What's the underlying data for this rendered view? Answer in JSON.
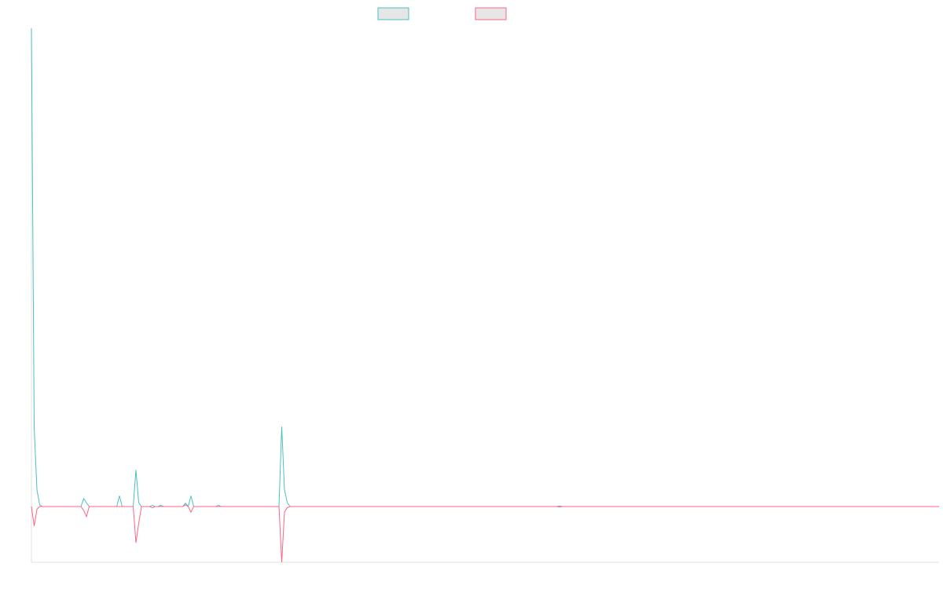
{
  "chart_data": {
    "type": "line",
    "title": "",
    "xlabel": "",
    "ylabel": "",
    "grid": false,
    "legend": "top-center",
    "ylim": [
      -1,
      8.5
    ],
    "xlim": [
      0,
      330
    ],
    "series": [
      {
        "color": "#4bc0c0",
        "fill": "#e6e6e6",
        "points": [
          [
            0,
            8.5
          ],
          [
            1,
            1.4
          ],
          [
            2,
            0.3
          ],
          [
            3,
            0.03
          ],
          [
            4,
            0
          ],
          [
            18,
            0
          ],
          [
            19,
            0.14
          ],
          [
            20,
            0.07
          ],
          [
            21,
            0
          ],
          [
            31,
            0
          ],
          [
            32,
            0.19
          ],
          [
            33,
            0
          ],
          [
            37,
            0
          ],
          [
            38,
            0.65
          ],
          [
            39,
            0.07
          ],
          [
            40,
            0
          ],
          [
            43,
            0
          ],
          [
            44,
            0.02
          ],
          [
            45,
            0
          ],
          [
            46,
            0
          ],
          [
            47,
            0.02
          ],
          [
            48,
            0
          ],
          [
            55,
            0
          ],
          [
            56,
            0.06
          ],
          [
            57,
            0
          ],
          [
            58,
            0.19
          ],
          [
            59,
            0
          ],
          [
            67,
            0
          ],
          [
            68,
            0.02
          ],
          [
            69,
            0
          ],
          [
            90,
            0
          ],
          [
            91,
            1.42
          ],
          [
            92,
            0.3
          ],
          [
            93,
            0.07
          ],
          [
            94,
            0
          ],
          [
            191,
            0
          ],
          [
            192,
            0.01
          ],
          [
            193,
            0
          ],
          [
            330,
            0
          ]
        ]
      },
      {
        "color": "#ff6384",
        "fill": "#e6e6e6",
        "points": [
          [
            0,
            0
          ],
          [
            1,
            -0.35
          ],
          [
            2,
            -0.05
          ],
          [
            3,
            0
          ],
          [
            18,
            0
          ],
          [
            19,
            -0.07
          ],
          [
            20,
            -0.18
          ],
          [
            21,
            0
          ],
          [
            37,
            0
          ],
          [
            38,
            -0.65
          ],
          [
            39,
            -0.3
          ],
          [
            40,
            0
          ],
          [
            43,
            0
          ],
          [
            44,
            -0.02
          ],
          [
            45,
            0
          ],
          [
            55,
            0
          ],
          [
            56,
            0.03
          ],
          [
            57,
            0
          ],
          [
            58,
            -0.1
          ],
          [
            59,
            0
          ],
          [
            90,
            0
          ],
          [
            91,
            -1.0
          ],
          [
            92,
            -0.1
          ],
          [
            93,
            -0.02
          ],
          [
            94,
            0
          ],
          [
            191,
            0
          ],
          [
            192,
            -0.01
          ],
          [
            193,
            0
          ],
          [
            330,
            0
          ]
        ]
      }
    ]
  }
}
